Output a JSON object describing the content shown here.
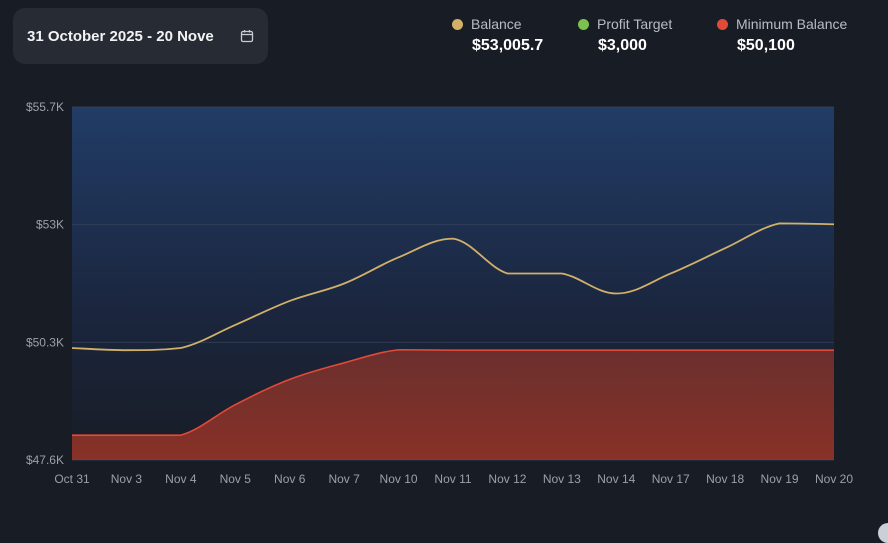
{
  "date_range": {
    "label": "31 October 2025 - 20 Nove",
    "icon": "calendar-icon"
  },
  "legend": [
    {
      "name": "Balance",
      "value": "$53,005.7",
      "color": "#d2b06a"
    },
    {
      "name": "Profit Target",
      "value": "$3,000",
      "color": "#7ec04e"
    },
    {
      "name": "Minimum Balance",
      "value": "$50,100",
      "color": "#e04a37"
    }
  ],
  "chart_data": {
    "type": "area",
    "categories": [
      "Oct 31",
      "Nov 3",
      "Nov 4",
      "Nov 5",
      "Nov 6",
      "Nov 7",
      "Nov 10",
      "Nov 11",
      "Nov 12",
      "Nov 13",
      "Nov 14",
      "Nov 17",
      "Nov 18",
      "Nov 19",
      "Nov 20"
    ],
    "y_ticks": [
      {
        "value": 47600,
        "label": "$47.6K"
      },
      {
        "value": 50300,
        "label": "$50.3K"
      },
      {
        "value": 53000,
        "label": "$53K"
      },
      {
        "value": 55700,
        "label": "$55.7K"
      }
    ],
    "ylim": [
      47600,
      55700
    ],
    "grid": true,
    "series": [
      {
        "name": "Balance",
        "color": "#d2b06a",
        "values": [
          50170,
          50120,
          50170,
          50700,
          51250,
          51650,
          52250,
          52680,
          51880,
          51880,
          51420,
          51880,
          52460,
          53030,
          53010
        ]
      },
      {
        "name": "Minimum Balance",
        "color": "#e04a37",
        "values": [
          48170,
          48170,
          48170,
          48870,
          49450,
          49830,
          50130,
          50120,
          50120,
          50120,
          50120,
          50120,
          50120,
          50120,
          50120
        ]
      }
    ]
  }
}
